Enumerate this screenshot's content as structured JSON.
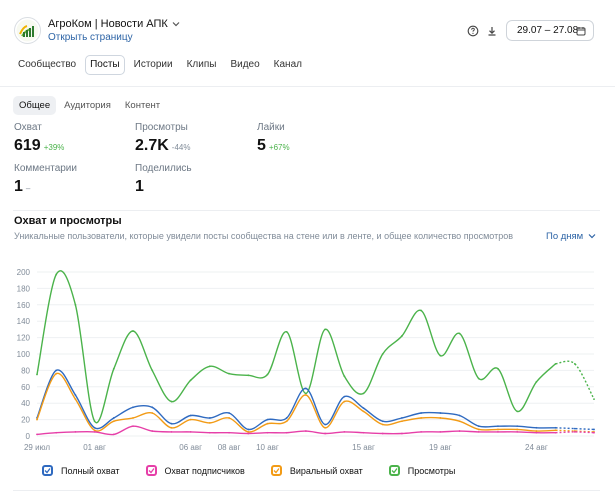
{
  "header": {
    "title": "АгроКом | Новости АПК",
    "open_page": "Открыть страницу",
    "date_range": "29.07 – 27.08"
  },
  "icons": {
    "help": "help-circle-icon",
    "download": "download-icon",
    "calendar": "calendar-icon",
    "chevron": "chevron-down-icon"
  },
  "nav": {
    "tabs": [
      "Сообщество",
      "Посты",
      "Истории",
      "Клипы",
      "Видео",
      "Канал"
    ],
    "active": 1
  },
  "subnav": {
    "tabs": [
      "Общее",
      "Аудитория",
      "Контент"
    ],
    "active": 0
  },
  "metrics": [
    {
      "label": "Охват",
      "value": "619",
      "change": "+39%",
      "trend": "positive"
    },
    {
      "label": "Просмотры",
      "value": "2.7K",
      "change": "-44%",
      "trend": "negative"
    },
    {
      "label": "Лайки",
      "value": "5",
      "change": "+67%",
      "trend": "positive"
    },
    {
      "label": "Комментарии",
      "value": "1",
      "change": "–",
      "trend": "neutral"
    },
    {
      "label": "Поделились",
      "value": "1",
      "change": "",
      "trend": "neutral"
    }
  ],
  "chart_section": {
    "title": "Охват и просмотры",
    "subtitle": "Уникальные пользователи, которые увидели посты сообщества на стене или в ленте, и общее количество просмотров",
    "granularity": "По дням"
  },
  "colors": {
    "accent": "#2d64a6",
    "positive": "#4bb34b",
    "reach": "#2f6ac0",
    "subscribers": "#e63fa8",
    "viral": "#f29b16",
    "views": "#4bb34b"
  },
  "chart_data": {
    "type": "line",
    "x": [
      "29 июл",
      "30 июл",
      "31 июл",
      "01 авг",
      "02 авг",
      "03 авг",
      "04 авг",
      "05 авг",
      "06 авг",
      "07 авг",
      "08 авг",
      "09 авг",
      "10 авг",
      "11 авг",
      "12 авг",
      "13 авг",
      "14 авг",
      "15 авг",
      "16 авг",
      "17 авг",
      "18 авг",
      "19 авг",
      "20 авг",
      "21 авг",
      "22 авг",
      "23 авг",
      "24 авг",
      "25 авг",
      "26 авг",
      "27 авг"
    ],
    "x_ticks": [
      "29 июл",
      "01 авг",
      "06 авг",
      "08 авг",
      "10 авг",
      "15 авг",
      "19 авг",
      "24 авг"
    ],
    "y_ticks": [
      0,
      20,
      40,
      60,
      80,
      100,
      120,
      140,
      160,
      180,
      200
    ],
    "ylim": [
      0,
      200
    ],
    "grid": true,
    "legend_position": "bottom",
    "partial_from_index": 27,
    "series": [
      {
        "name": "Полный охват",
        "color": "#2f6ac0",
        "values": [
          22,
          80,
          50,
          10,
          22,
          35,
          35,
          15,
          25,
          22,
          28,
          8,
          20,
          22,
          58,
          14,
          48,
          34,
          18,
          22,
          28,
          28,
          25,
          12,
          12,
          12,
          10,
          10,
          9,
          8
        ]
      },
      {
        "name": "Охват подписчиков",
        "color": "#e63fa8",
        "values": [
          2,
          4,
          5,
          5,
          2,
          12,
          6,
          5,
          5,
          4,
          4,
          3,
          4,
          4,
          6,
          3,
          5,
          4,
          3,
          3,
          5,
          5,
          6,
          5,
          5,
          5,
          4,
          4,
          5,
          4
        ]
      },
      {
        "name": "Вир​альный охват",
        "color": "#f29b16",
        "values": [
          20,
          76,
          45,
          7,
          18,
          22,
          28,
          10,
          20,
          16,
          22,
          5,
          15,
          18,
          50,
          10,
          42,
          30,
          14,
          18,
          22,
          22,
          18,
          8,
          8,
          8,
          6,
          7,
          6,
          5
        ]
      },
      {
        "name": "Просмотры",
        "color": "#4bb34b",
        "values": [
          75,
          197,
          160,
          18,
          82,
          128,
          80,
          42,
          68,
          85,
          76,
          74,
          75,
          127,
          52,
          130,
          73,
          52,
          100,
          122,
          153,
          98,
          125,
          70,
          82,
          30,
          66,
          88,
          88,
          45
        ]
      }
    ]
  }
}
